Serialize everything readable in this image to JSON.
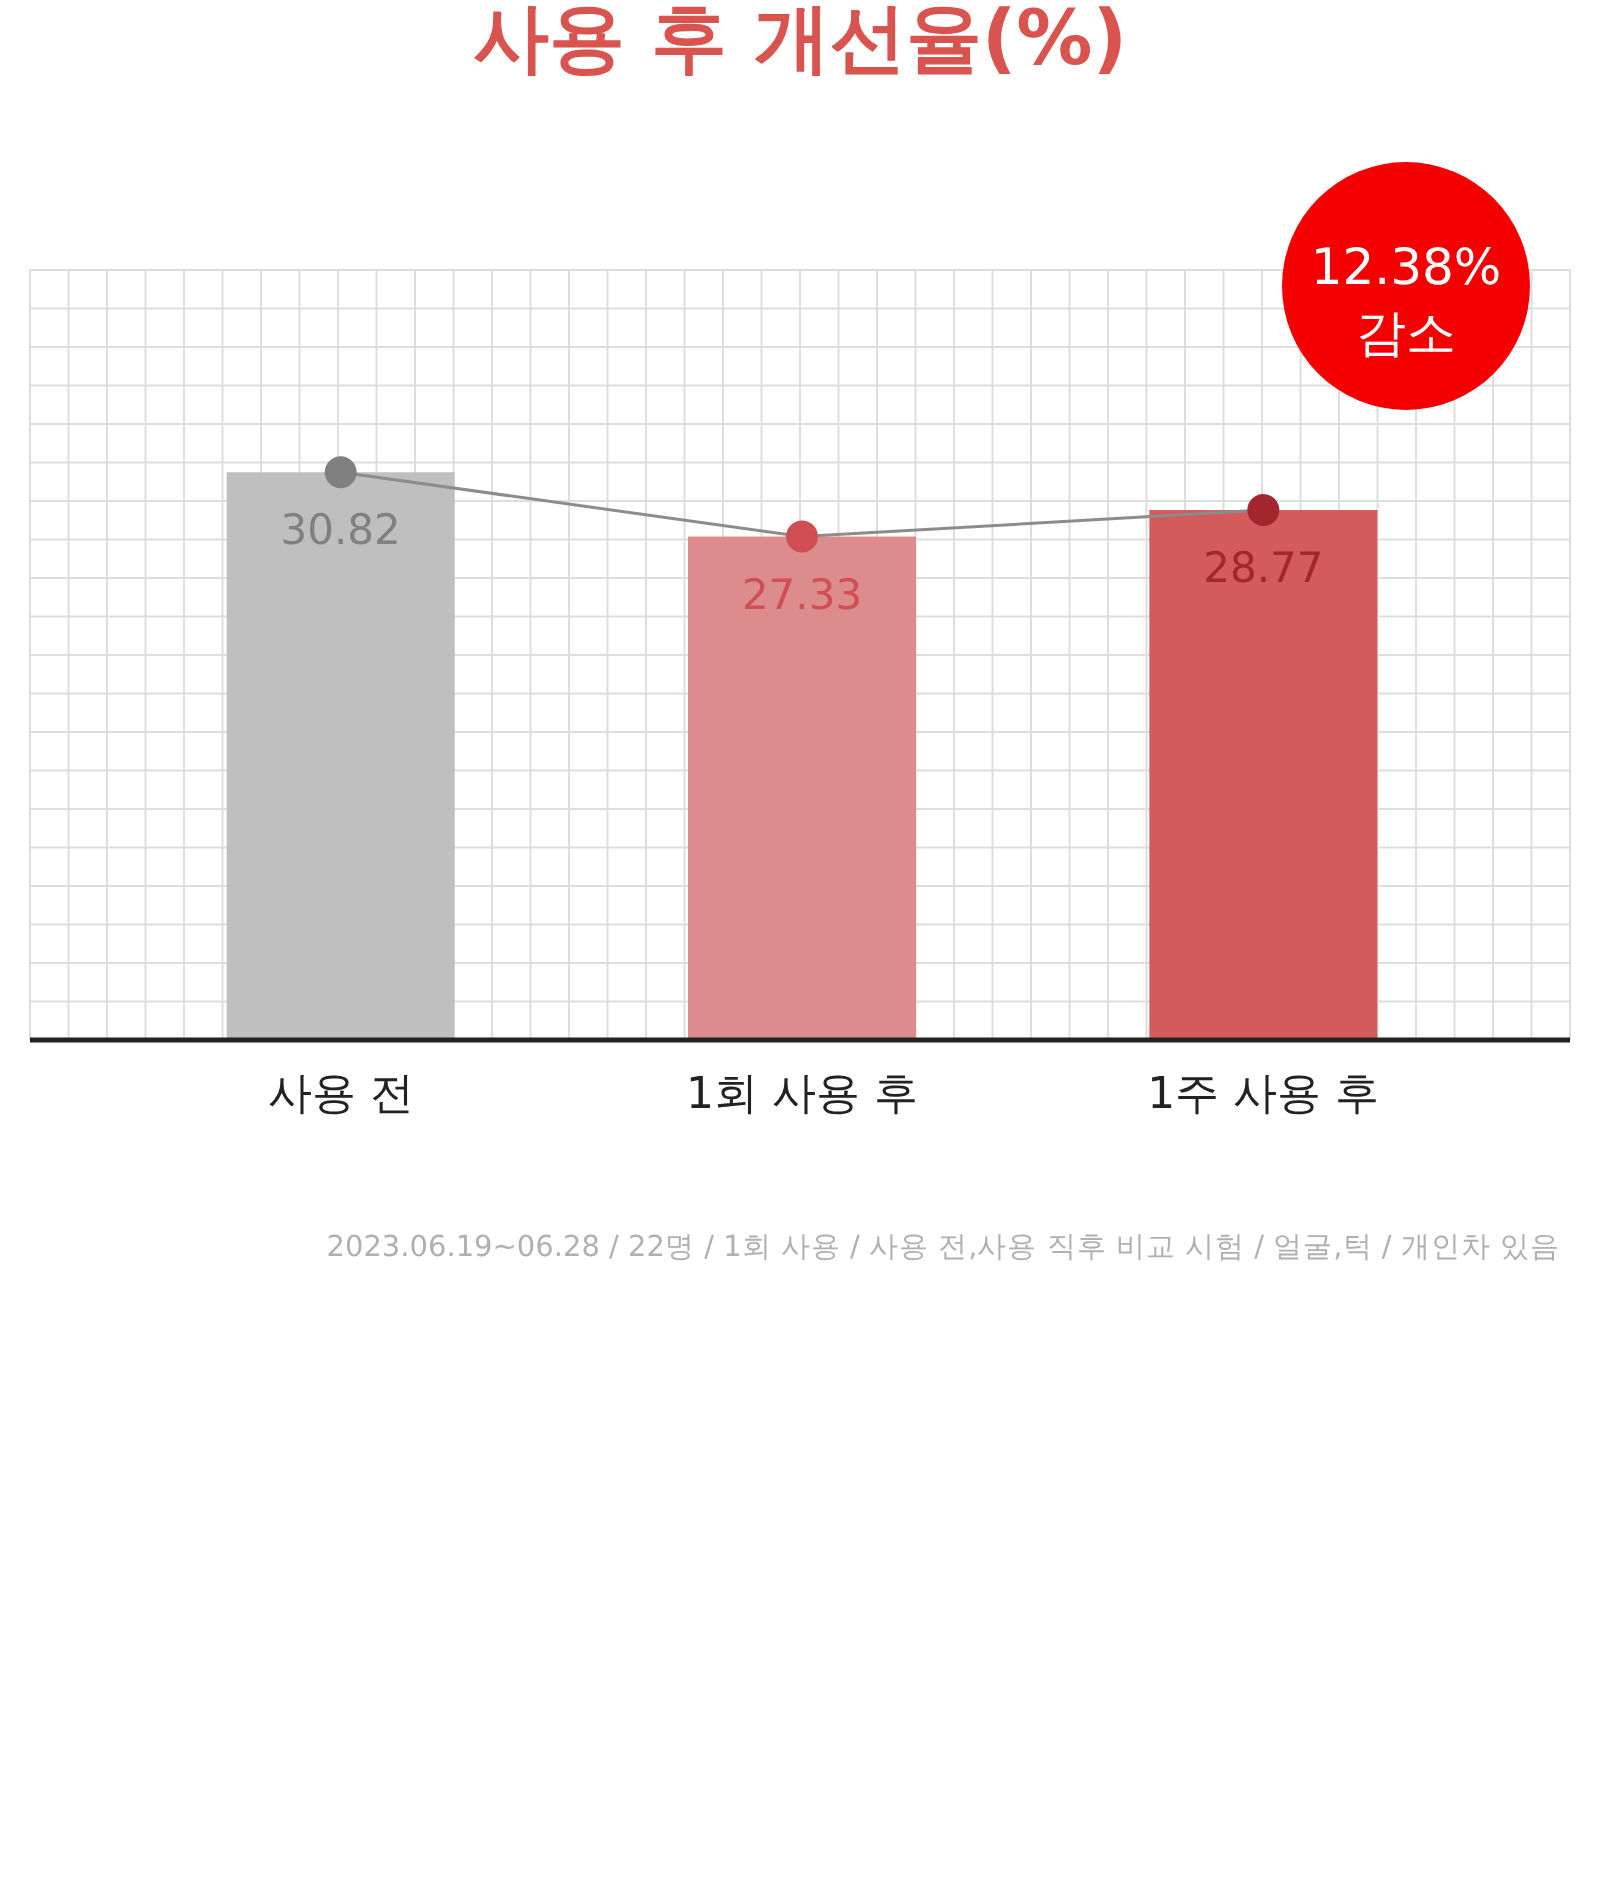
{
  "chart_data": {
    "type": "bar",
    "title": "사용 후 개선율(%)",
    "categories": [
      "사용 전",
      "1회 사용 후",
      "1주 사용 후"
    ],
    "ylim": [
      0,
      41.8
    ],
    "tick_labels": "x",
    "grid": true,
    "marker": "circle",
    "series": [
      {
        "values": [
          30.82,
          27.33,
          28.77
        ],
        "value_labels": [
          "30.82",
          "27.33",
          "28.77"
        ],
        "colors": [
          "#bfbfbf",
          "#dc8c8c",
          "#d45b5b"
        ]
      },
      {
        "type": "line",
        "values": [
          30.82,
          27.33,
          28.77
        ],
        "color": "#8c8c8c",
        "colors": [
          "#808080",
          "#cf4f55",
          "#a3262c"
        ]
      }
    ],
    "annotations": [
      "12.38% 감소",
      "2023.06.19~06.28 / 22명 / 1회 사용 / 사용 전,사용 직후 비교 시험 / 얼굴,턱 / 개인차 있음"
    ]
  }
}
